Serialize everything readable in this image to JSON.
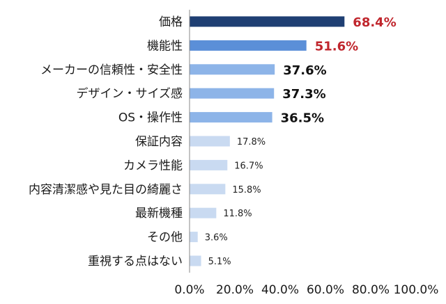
{
  "chart_data": {
    "type": "bar",
    "orientation": "horizontal",
    "categories": [
      "価格",
      "機能性",
      "メーカーの信頼性・安全性",
      "デザイン・サイズ感",
      "OS・操作性",
      "保証内容",
      "カメラ性能",
      "内容清潔感や見た目の綺麗さ",
      "最新機種",
      "その他",
      "重視する点はない"
    ],
    "values": [
      68.4,
      51.6,
      37.6,
      37.3,
      36.5,
      17.8,
      16.7,
      15.8,
      11.8,
      3.6,
      5.1
    ],
    "value_labels": [
      "68.4%",
      "51.6%",
      "37.6%",
      "37.3%",
      "36.5%",
      "17.8%",
      "16.7%",
      "15.8%",
      "11.8%",
      "3.6%",
      "5.1%"
    ],
    "bar_colors": [
      "#1f3f73",
      "#5b8fd8",
      "#8db4e8",
      "#8db4e8",
      "#8db4e8",
      "#c9daf1",
      "#c9daf1",
      "#c9daf1",
      "#c9daf1",
      "#c9daf1",
      "#c9daf1"
    ],
    "label_colors": [
      "#c0262d",
      "#c0262d",
      "#111111",
      "#111111",
      "#111111",
      "#222222",
      "#222222",
      "#222222",
      "#222222",
      "#222222",
      "#222222"
    ],
    "label_bold": [
      true,
      true,
      true,
      true,
      true,
      false,
      false,
      false,
      false,
      false,
      false
    ],
    "xlim": [
      0,
      100
    ],
    "x_ticks": [
      0,
      20,
      40,
      60,
      80,
      100
    ],
    "x_tick_labels": [
      "0.0%",
      "20.0%",
      "40.0%",
      "60.0%",
      "80.0%",
      "100.0%"
    ],
    "grid": false,
    "legend": "none",
    "title": "",
    "xlabel": "",
    "ylabel": ""
  }
}
